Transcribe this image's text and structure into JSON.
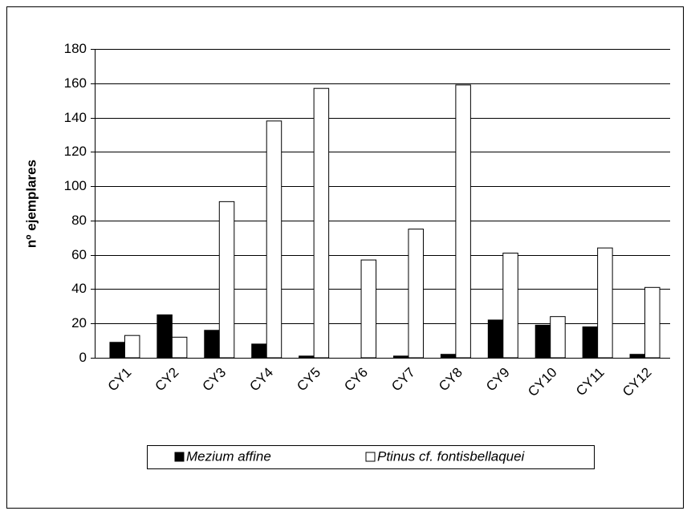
{
  "chart_data": {
    "type": "bar",
    "y_label": "nº ejemplares",
    "categories": [
      "CY1",
      "CY2",
      "CY3",
      "CY4",
      "CY5",
      "CY6",
      "CY7",
      "CY8",
      "CY9",
      "CY10",
      "CY11",
      "CY12"
    ],
    "series": [
      {
        "name": "Mezium affine",
        "color": "#000000",
        "values": [
          9,
          25,
          16,
          8,
          1,
          0,
          1,
          2,
          22,
          19,
          18,
          2
        ]
      },
      {
        "name": "Ptinus cf. fontisbellaquei",
        "color": "#ffffff",
        "values": [
          13,
          12,
          91,
          138,
          157,
          57,
          75,
          159,
          61,
          24,
          64,
          41
        ]
      }
    ],
    "ylim": [
      0,
      180
    ],
    "yticks": [
      0,
      20,
      40,
      60,
      80,
      100,
      120,
      140,
      160,
      180
    ],
    "grid": true,
    "legend": "bottom"
  }
}
